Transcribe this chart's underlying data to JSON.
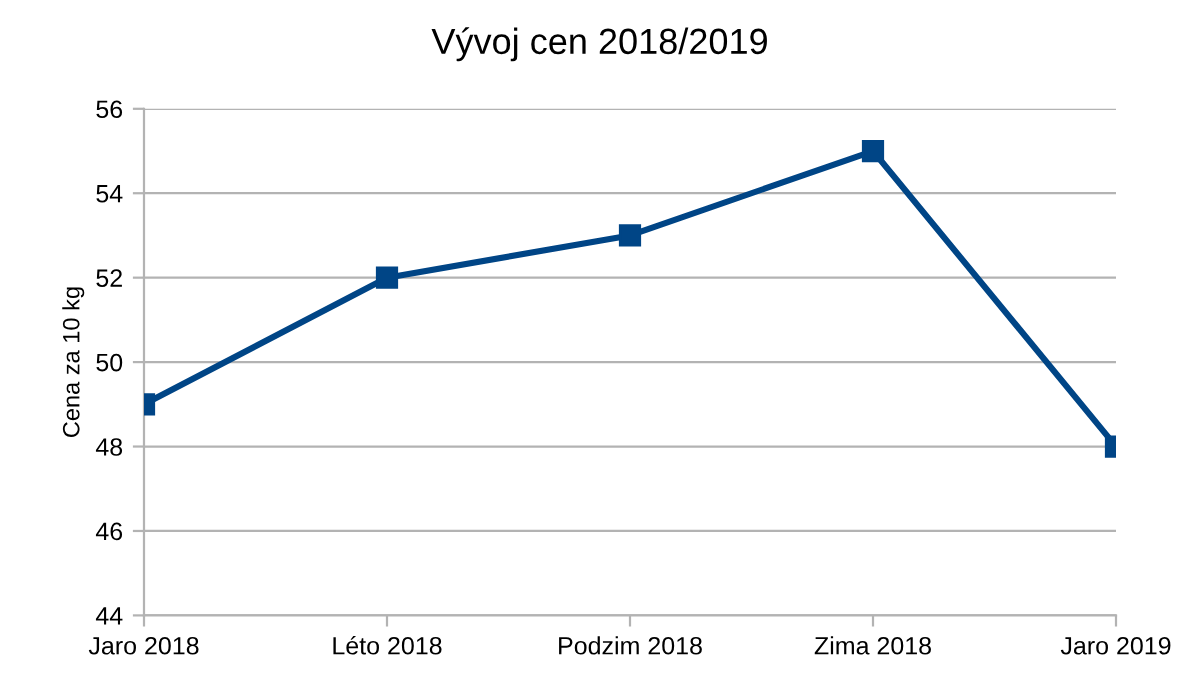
{
  "chart_data": {
    "type": "line",
    "title": "Vývoj cen 2018/2019",
    "ylabel": "Cena za 10 kg",
    "categories": [
      "Jaro 2018",
      "Léto 2018",
      "Podzim 2018",
      "Zima 2018",
      "Jaro 2019"
    ],
    "series": [
      {
        "color": "#004586",
        "values": [
          49,
          52,
          53,
          55,
          48
        ]
      }
    ],
    "ylim": [
      44,
      56
    ],
    "yticks": [
      44,
      46,
      48,
      50,
      52,
      54,
      56
    ],
    "grid": "y",
    "marker": "square",
    "line_style": "solid"
  }
}
